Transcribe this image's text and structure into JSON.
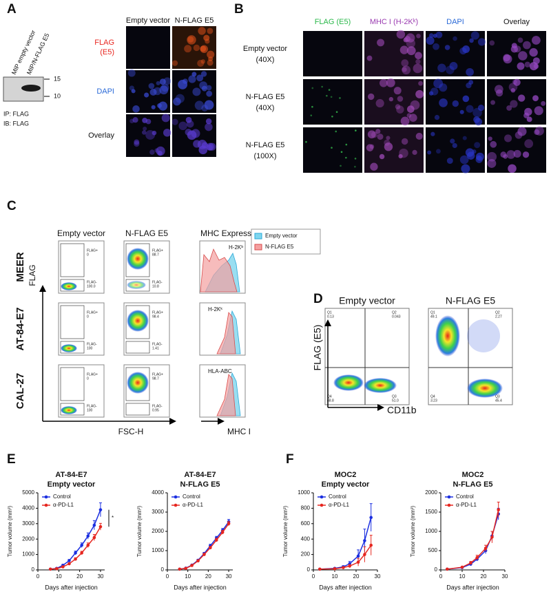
{
  "panel_a": {
    "label": "A",
    "blot_lanes": [
      "MIP empty vector",
      "MIP/N-FLAG E5"
    ],
    "markers": [
      15,
      10
    ],
    "blot_notes": [
      "IP: FLAG",
      "IB: FLAG"
    ],
    "columns": [
      "Empty vector",
      "N-FLAG E5"
    ],
    "rows": [
      [
        "FLAG",
        "(E5)"
      ],
      [
        "DAPI"
      ],
      [
        "Overlay"
      ]
    ]
  },
  "panel_b": {
    "label": "B",
    "columns": [
      "FLAG (E5)",
      "MHC I (H-2Kᵏ)",
      "DAPI",
      "Overlay"
    ],
    "rows": [
      [
        "Empty vector",
        "(40X)"
      ],
      [
        "N-FLAG E5",
        "(40X)"
      ],
      [
        "N-FLAG E5",
        "(100X)"
      ]
    ]
  },
  "panel_c": {
    "label": "C",
    "columns": [
      "Empty vector",
      "N-FLAG E5",
      "MHC Expression"
    ],
    "y_axis": "FLAG",
    "x_axis": "FSC-H",
    "hist_axis": "MHC I",
    "legend": [
      "Empty vector",
      "N-FLAG E5"
    ],
    "rows": [
      {
        "name": "MEER",
        "marker": "H-2Kᵇ",
        "empty": [
          "FLAG+",
          "0",
          "FLAG-",
          "100.0"
        ],
        "flag": [
          "FLAG+",
          "88.7",
          "FLAG-",
          "10.8"
        ]
      },
      {
        "name": "AT-84-E7",
        "marker": "H-2Kᵏ",
        "empty": [
          "FLAG+",
          "0",
          "FLAG-",
          "100"
        ],
        "flag": [
          "FLAG+",
          "98.4",
          "FLAG-",
          "1.41"
        ]
      },
      {
        "name": "CAL-27",
        "marker": "HLA-ABC",
        "empty": [
          "FLAG+",
          "0",
          "FLAG-",
          "100"
        ],
        "flag": [
          "FLAG+",
          "98.7",
          "FLAG-",
          "0.95"
        ]
      }
    ]
  },
  "panel_d": {
    "label": "D",
    "columns": [
      "Empty vector",
      "N-FLAG E5"
    ],
    "y_axis": "FLAG (E5)",
    "x_axis": "CD11b",
    "quadrants": [
      [
        [
          "Q1",
          "0.13"
        ],
        [
          "Q2",
          "0.043"
        ],
        [
          "Q4",
          "48.8"
        ],
        [
          "Q3",
          "51.0"
        ]
      ],
      [
        [
          "Q1",
          "49.1"
        ],
        [
          "Q2",
          "2.27"
        ],
        [
          "Q4",
          "3.23"
        ],
        [
          "Q3",
          "45.4"
        ]
      ]
    ]
  },
  "panel_e": {
    "label": "E"
  },
  "panel_f": {
    "label": "F"
  },
  "chart_data": [
    {
      "type": "line",
      "title": [
        "AT-84-E7",
        "Empty vector"
      ],
      "xlabel": "Days after injection",
      "ylabel": "Tumor volume (mm³)",
      "annotation": "*",
      "x": [
        6,
        9,
        12,
        15,
        18,
        21,
        24,
        27,
        30
      ],
      "xlim": [
        0,
        32
      ],
      "xticks": [
        0,
        10,
        20,
        30
      ],
      "ylim": [
        0,
        5000
      ],
      "yticks": [
        0,
        1000,
        2000,
        3000,
        4000,
        5000
      ],
      "series": [
        {
          "name": "Control",
          "color": "#1a2ee0",
          "values": [
            50,
            100,
            300,
            600,
            1100,
            1600,
            2200,
            2900,
            3900
          ],
          "errors": [
            30,
            40,
            60,
            80,
            120,
            150,
            200,
            300,
            450
          ]
        },
        {
          "name": "α-PD-L1",
          "color": "#e6261f",
          "values": [
            50,
            80,
            200,
            400,
            700,
            1100,
            1600,
            2100,
            2800
          ],
          "errors": [
            20,
            30,
            50,
            60,
            90,
            110,
            150,
            200,
            220
          ]
        }
      ]
    },
    {
      "type": "line",
      "title": [
        "AT-84-E7",
        "N-FLAG E5"
      ],
      "xlabel": "Days after injection",
      "ylabel": "Tumor volume (mm³)",
      "x": [
        6,
        9,
        12,
        15,
        18,
        21,
        24,
        27,
        30
      ],
      "xlim": [
        0,
        32
      ],
      "xticks": [
        0,
        10,
        20,
        30
      ],
      "ylim": [
        0,
        4000
      ],
      "yticks": [
        0,
        1000,
        2000,
        3000,
        4000
      ],
      "series": [
        {
          "name": "Control",
          "color": "#1a2ee0",
          "values": [
            40,
            90,
            250,
            500,
            850,
            1250,
            1650,
            2050,
            2500
          ],
          "errors": [
            20,
            30,
            40,
            50,
            60,
            80,
            90,
            100,
            120
          ]
        },
        {
          "name": "α-PD-L1",
          "color": "#e6261f",
          "values": [
            40,
            80,
            230,
            470,
            800,
            1150,
            1550,
            1950,
            2400
          ],
          "errors": [
            20,
            30,
            40,
            50,
            60,
            70,
            90,
            100,
            110
          ]
        }
      ]
    },
    {
      "type": "line",
      "title": [
        "MOC2",
        "Empty vector"
      ],
      "xlabel": "Days after injection",
      "ylabel": "Tumor volume (mm³)",
      "x": [
        3,
        10,
        14,
        17,
        21,
        24,
        27
      ],
      "xlim": [
        0,
        30
      ],
      "xticks": [
        0,
        10,
        20,
        30
      ],
      "ylim": [
        0,
        1000
      ],
      "yticks": [
        0,
        200,
        400,
        600,
        800,
        1000
      ],
      "series": [
        {
          "name": "Control",
          "color": "#1a2ee0",
          "values": [
            10,
            20,
            40,
            80,
            180,
            380,
            680
          ],
          "errors": [
            5,
            10,
            15,
            30,
            80,
            150,
            180
          ]
        },
        {
          "name": "α-PD-L1",
          "color": "#e6261f",
          "values": [
            10,
            15,
            30,
            50,
            100,
            200,
            320
          ],
          "errors": [
            5,
            5,
            10,
            20,
            50,
            100,
            130
          ]
        }
      ]
    },
    {
      "type": "line",
      "title": [
        "MOC2",
        "N-FLAG E5"
      ],
      "xlabel": "Days after injection",
      "ylabel": "Tumor volume (mm³)",
      "x": [
        3,
        10,
        14,
        17,
        21,
        24,
        27
      ],
      "xlim": [
        0,
        30
      ],
      "xticks": [
        0,
        10,
        20,
        30
      ],
      "ylim": [
        0,
        2000
      ],
      "yticks": [
        0,
        500,
        1000,
        1500,
        2000
      ],
      "series": [
        {
          "name": "Control",
          "color": "#1a2ee0",
          "values": [
            20,
            60,
            150,
            280,
            500,
            880,
            1450
          ],
          "errors": [
            10,
            20,
            40,
            50,
            80,
            120,
            150
          ]
        },
        {
          "name": "α-PD-L1",
          "color": "#e6261f",
          "values": [
            20,
            70,
            180,
            320,
            560,
            850,
            1560
          ],
          "errors": [
            10,
            20,
            40,
            60,
            80,
            150,
            200
          ]
        }
      ]
    }
  ]
}
